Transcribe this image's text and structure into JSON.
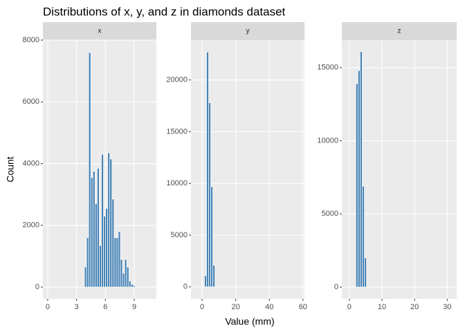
{
  "title": "Distributions of x, y, and z in diamonds dataset",
  "x_label": "Value (mm)",
  "y_label": "Count",
  "chart_data": [
    {
      "type": "histogram",
      "facet": "x",
      "color": "#4682b4",
      "grid": true,
      "bins": [
        3.82,
        4.04,
        4.26,
        4.48,
        4.7,
        4.92,
        5.14,
        5.36,
        5.58,
        5.8,
        6.02,
        6.24,
        6.46,
        6.68,
        6.9,
        7.12,
        7.34,
        7.56,
        7.78,
        8.0,
        8.22,
        8.44,
        8.66,
        8.88,
        9.1
      ],
      "counts": [
        650,
        1600,
        7600,
        3550,
        3750,
        2700,
        3850,
        1350,
        4300,
        2300,
        2550,
        4350,
        4150,
        2850,
        1600,
        1600,
        1800,
        900,
        450,
        900,
        650,
        200,
        100,
        50
      ],
      "xlim": [
        -0.5,
        11.3
      ],
      "xticks": [
        0,
        3,
        6,
        9
      ],
      "ylim": [
        -380,
        8000
      ],
      "yticks": [
        0,
        2000,
        4000,
        6000,
        8000
      ]
    },
    {
      "type": "histogram",
      "facet": "y",
      "color": "#4682b4",
      "grid": true,
      "bins": [
        1.4,
        2.65,
        3.9,
        5.15,
        6.4,
        7.65
      ],
      "counts": [
        1100,
        22700,
        17800,
        9700,
        2100
      ],
      "xlim": [
        -6.6,
        60.9
      ],
      "xticks": [
        0,
        20,
        40,
        60
      ],
      "ylim": [
        -1150,
        23850
      ],
      "yticks": [
        0,
        5000,
        10000,
        15000,
        20000
      ]
    },
    {
      "type": "histogram",
      "facet": "z",
      "color": "#4682b4",
      "grid": true,
      "bins": [
        2.0,
        2.65,
        3.3,
        3.95,
        4.6,
        5.25
      ],
      "counts": [
        13900,
        14800,
        16100,
        6900,
        2000
      ],
      "xlim": [
        -2.3,
        32.9
      ],
      "xticks": [
        0,
        10,
        20,
        30
      ],
      "ylim": [
        -800,
        16880
      ],
      "yticks": [
        0,
        5000,
        10000,
        15000
      ]
    }
  ]
}
